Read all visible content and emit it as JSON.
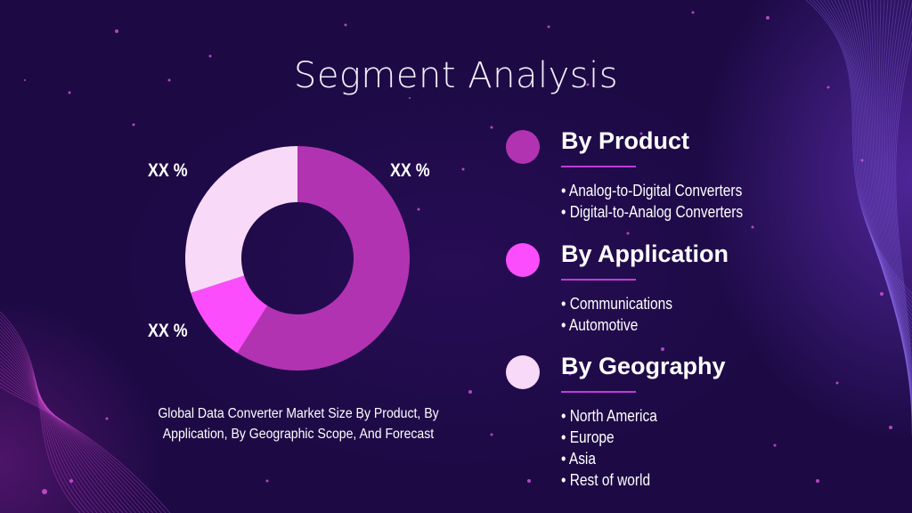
{
  "title": "Segment Analysis",
  "chart_data": {
    "type": "pie",
    "donut": true,
    "slices": [
      {
        "label": "XX %",
        "value": 59,
        "color": "#b233b2"
      },
      {
        "label": "XX %",
        "value": 11,
        "color": "#fb4dfb"
      },
      {
        "label": "XX %",
        "value": 30,
        "color": "#f8d9f8"
      }
    ],
    "caption": "Global Data Converter Market Size By Product, By Application, By Geographic Scope, And Forecast"
  },
  "segments": [
    {
      "title": "By Product",
      "color": "#b233b2",
      "items": [
        "Analog-to-Digital Converters",
        "Digital-to-Analog Converters"
      ]
    },
    {
      "title": "By Application",
      "color": "#fb4dfb",
      "items": [
        "Communications",
        "Automotive"
      ]
    },
    {
      "title": "By Geography",
      "color": "#f8d9f8",
      "items": [
        "North America",
        "Europe",
        "Asia",
        "Rest of world"
      ]
    }
  ],
  "colors": {
    "background": "#1d0a45",
    "rule": "#c23bd8"
  }
}
